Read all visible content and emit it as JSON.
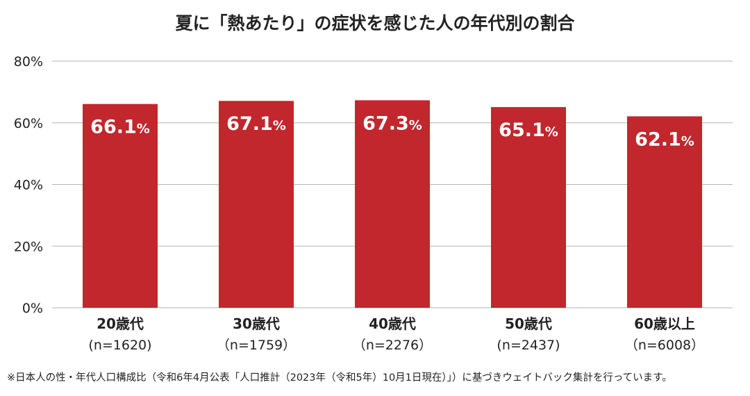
{
  "chart_data": {
    "type": "bar",
    "title": "夏に「熱あたり」の症状を感じた人の年代別の割合",
    "categories": [
      "20歳代",
      "30歳代",
      "40歳代",
      "50歳代",
      "60歳以上"
    ],
    "sample_sizes": [
      "(n=1620)",
      "（n=1759）",
      "（n=2276）",
      "(n=2437)",
      "（n=6008）"
    ],
    "values": [
      66.1,
      67.1,
      67.3,
      65.1,
      62.1
    ],
    "value_labels": [
      "66.1",
      "67.1",
      "67.3",
      "65.1",
      "62.1"
    ],
    "value_unit": "%",
    "ylim": [
      0,
      80
    ],
    "yticks": [
      "0%",
      "20%",
      "40%",
      "60%",
      "80%"
    ],
    "ytick_values": [
      0,
      20,
      40,
      60,
      80
    ],
    "grid": true,
    "bar_color": "#c1272d",
    "grid_color": "#b3b3b3"
  },
  "footnote": "※日本人の性・年代人口構成比（令和6年4月公表「人口推計（2023年（令和5年）10月1日現在）」）に基づきウェイトバック集計を行っています。"
}
